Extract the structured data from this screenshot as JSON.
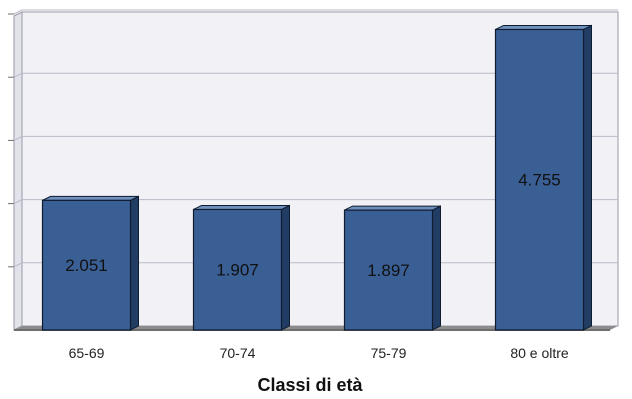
{
  "chart_data": {
    "type": "bar",
    "categories": [
      "65-69",
      "70-74",
      "75-79",
      "80 e oltre"
    ],
    "values": [
      2051,
      1907,
      1897,
      4755
    ],
    "data_labels": [
      "2.051",
      "1.907",
      "1.897",
      "4.755"
    ],
    "xlabel": "Classi di età",
    "ylabel": "",
    "ylim": [
      0,
      5000
    ],
    "grid": true,
    "legend": "none",
    "style": "3d",
    "colors": {
      "bar_front": "#3a5f95",
      "bar_top": "#6f8fbd",
      "bar_side": "#223d63",
      "bar_outline": "#0f1c30",
      "plot_back": "#f2f2f6",
      "grid": "#b9b9c6",
      "floor": "#8c8c8c"
    }
  }
}
